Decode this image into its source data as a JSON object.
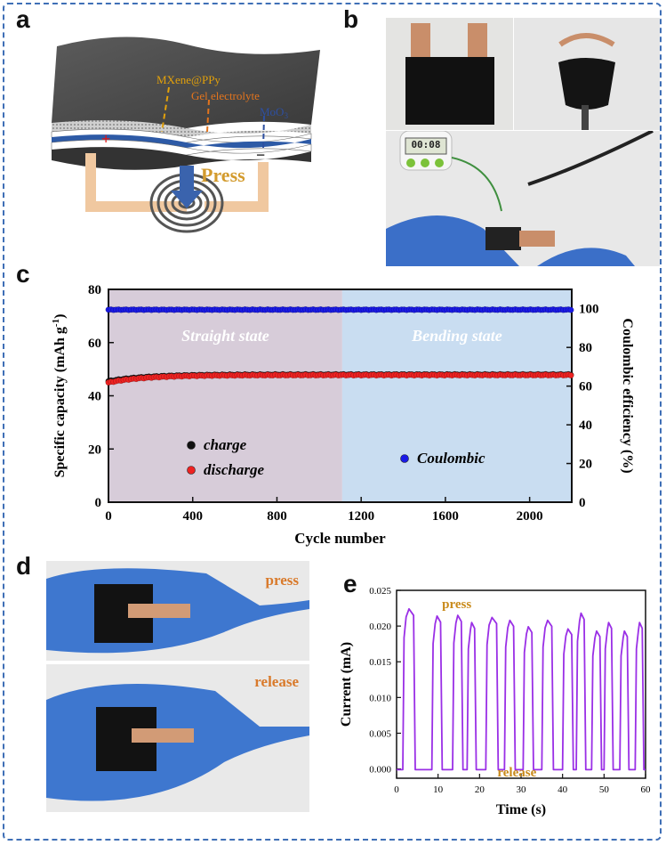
{
  "panels": {
    "a": "a",
    "b": "b",
    "c": "c",
    "d": "d",
    "e": "e"
  },
  "schematic": {
    "layer1": "MXene@PPy",
    "layer2": "Gel electrolyte",
    "layer3": "MoO",
    "layer3_sub": "3",
    "plus": "+",
    "minus": "−",
    "press": "Press"
  },
  "timer_display": "00:08",
  "photo_labels": {
    "press": "press",
    "release": "release"
  },
  "chart_data": [
    {
      "type": "scatter",
      "xlabel": "Cycle number",
      "ylabel": "Specific capacity (mAh g",
      "ylabel_sup": "-1",
      "ylabel_end": ")",
      "y2label": "Coulombic efficiency (%)",
      "xlim": [
        0,
        2200
      ],
      "ylim": [
        0,
        80
      ],
      "y2lim": [
        0,
        110
      ],
      "xticks": [
        0,
        400,
        800,
        1200,
        1600,
        2000
      ],
      "yticks": [
        0,
        20,
        40,
        60,
        80
      ],
      "y2ticks": [
        0,
        20,
        40,
        60,
        80,
        100
      ],
      "regions": [
        {
          "label": "Straight state",
          "x": [
            0,
            1110
          ],
          "color": "#d7ccd9"
        },
        {
          "label": "Bending state",
          "x": [
            1110,
            2200
          ],
          "color": "#c9ddf1"
        }
      ],
      "series": [
        {
          "name": "charge",
          "axis": "left",
          "color": "#111111",
          "start": 45.5,
          "plateau": 48.0
        },
        {
          "name": "discharge",
          "axis": "left",
          "color": "#ee2222",
          "start": 45.0,
          "plateau": 47.8
        },
        {
          "name": "Coulombic",
          "axis": "right",
          "color": "#1a1ae6",
          "start": 99.5,
          "plateau": 99.5
        }
      ]
    },
    {
      "type": "line",
      "xlabel": "Time (s)",
      "ylabel": "Current (mA)",
      "xlim": [
        0,
        60
      ],
      "ylim": [
        -0.0013,
        0.025
      ],
      "xticks": [
        0,
        10,
        20,
        30,
        40,
        50,
        60
      ],
      "yticks": [
        0.0,
        0.005,
        0.01,
        0.015,
        0.02,
        0.025
      ],
      "ytick_labels": [
        "0.000",
        "0.005",
        "0.010",
        "0.015",
        "0.020",
        "0.025"
      ],
      "color": "#9a2fe6",
      "annotations": {
        "top": "press",
        "bottom": "release"
      },
      "pulses": [
        {
          "start": 1.5,
          "end": 4.5,
          "peak": 0.0224
        },
        {
          "start": 8.5,
          "end": 11.0,
          "peak": 0.0214
        },
        {
          "start": 13.5,
          "end": 16.0,
          "peak": 0.0215
        },
        {
          "start": 17.0,
          "end": 19.2,
          "peak": 0.0205
        },
        {
          "start": 21.5,
          "end": 24.5,
          "peak": 0.0212
        },
        {
          "start": 26.0,
          "end": 28.6,
          "peak": 0.0208
        },
        {
          "start": 30.5,
          "end": 33.0,
          "peak": 0.0199
        },
        {
          "start": 35.0,
          "end": 37.8,
          "peak": 0.0208
        },
        {
          "start": 40.0,
          "end": 42.6,
          "peak": 0.0196
        },
        {
          "start": 43.3,
          "end": 45.6,
          "peak": 0.0218
        },
        {
          "start": 47.0,
          "end": 49.4,
          "peak": 0.0193
        },
        {
          "start": 50.0,
          "end": 52.2,
          "peak": 0.0205
        },
        {
          "start": 53.8,
          "end": 56.0,
          "peak": 0.0193
        },
        {
          "start": 57.5,
          "end": 59.6,
          "peak": 0.0205
        }
      ]
    }
  ]
}
